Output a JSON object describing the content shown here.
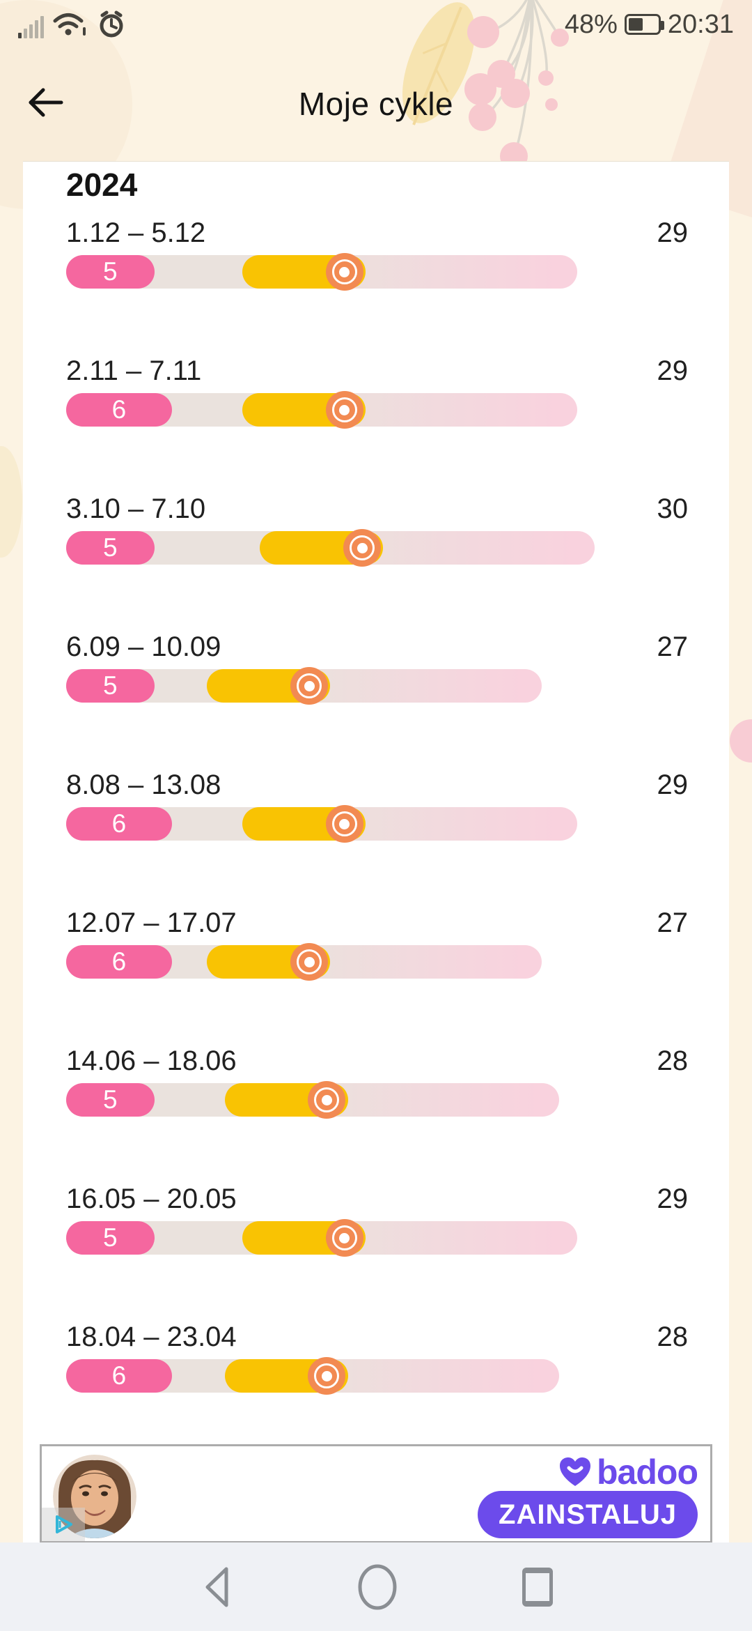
{
  "status_bar": {
    "battery_percent": "48%",
    "time": "20:31",
    "left_icons": [
      "signal-icon",
      "wifi-icon",
      "alarm-icon"
    ]
  },
  "header": {
    "title": "Moje cykle",
    "back_icon": "arrow-left"
  },
  "section": {
    "year": "2024"
  },
  "cycles": [
    {
      "date_range": "1.12 – 5.12",
      "cycle_length": 29,
      "period_days": 5,
      "fertile_start_day": 10,
      "fertile_end_day": 17,
      "ovulation_day": 15.8
    },
    {
      "date_range": "2.11 – 7.11",
      "cycle_length": 29,
      "period_days": 6,
      "fertile_start_day": 10,
      "fertile_end_day": 17,
      "ovulation_day": 15.8
    },
    {
      "date_range": "3.10 – 7.10",
      "cycle_length": 30,
      "period_days": 5,
      "fertile_start_day": 11,
      "fertile_end_day": 18,
      "ovulation_day": 16.8
    },
    {
      "date_range": "6.09 – 10.09",
      "cycle_length": 27,
      "period_days": 5,
      "fertile_start_day": 8,
      "fertile_end_day": 15,
      "ovulation_day": 13.8
    },
    {
      "date_range": "8.08 – 13.08",
      "cycle_length": 29,
      "period_days": 6,
      "fertile_start_day": 10,
      "fertile_end_day": 17,
      "ovulation_day": 15.8
    },
    {
      "date_range": "12.07 – 17.07",
      "cycle_length": 27,
      "period_days": 6,
      "fertile_start_day": 8,
      "fertile_end_day": 15,
      "ovulation_day": 13.8
    },
    {
      "date_range": "14.06 – 18.06",
      "cycle_length": 28,
      "period_days": 5,
      "fertile_start_day": 9,
      "fertile_end_day": 16,
      "ovulation_day": 14.8
    },
    {
      "date_range": "16.05 – 20.05",
      "cycle_length": 29,
      "period_days": 5,
      "fertile_start_day": 10,
      "fertile_end_day": 17,
      "ovulation_day": 15.8
    },
    {
      "date_range": "18.04 – 23.04",
      "cycle_length": 28,
      "period_days": 6,
      "fertile_start_day": 9,
      "fertile_end_day": 16,
      "ovulation_day": 14.8
    }
  ],
  "ad": {
    "brand": "badoo",
    "cta_label": "ZAINSTALUJ",
    "adchoices_icon": "ad-choices-play"
  },
  "nav": {
    "icons": [
      "back-triangle-icon",
      "home-circle-icon",
      "recents-square-icon"
    ]
  },
  "colors": {
    "cream_background": "#FCF3E3",
    "period_pink": "#F5679F",
    "fertile_yellow": "#F9C303",
    "ovulation_orange": "#F28A52",
    "track_beige": "#EAE2DD",
    "track_end_pink": "#F9D2DE",
    "badoo_purple": "#6C4BEB",
    "nav_icon_gray": "#8A8E93"
  }
}
